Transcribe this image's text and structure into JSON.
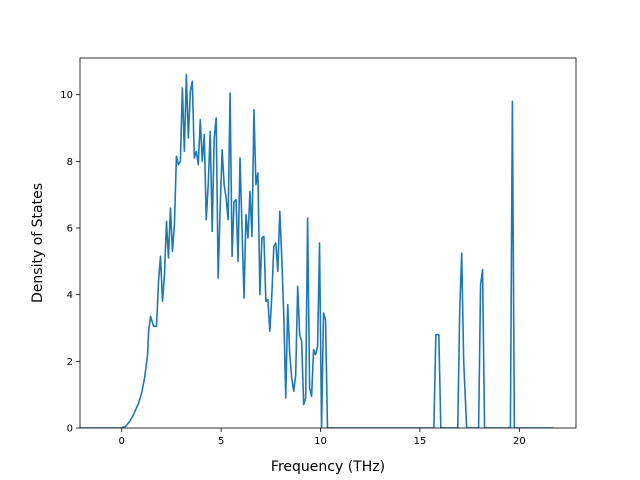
{
  "chart_data": {
    "type": "line",
    "title": "",
    "xlabel": "Frequency (THz)",
    "ylabel": "Density of States",
    "xlim": [
      -2.1,
      22.85
    ],
    "ylim": [
      0,
      11.1
    ],
    "xticks": [
      0,
      5,
      10,
      15,
      20
    ],
    "yticks": [
      0,
      2,
      4,
      6,
      8,
      10
    ],
    "grid": false,
    "legend": "none",
    "colors": {
      "line": "#1f77b4",
      "axes": "#000000",
      "background": "#ffffff"
    },
    "series": [
      {
        "x": [
          -2.1,
          0.0,
          0.2,
          0.4,
          0.55,
          0.7,
          0.85,
          1.0,
          1.15,
          1.3,
          1.35,
          1.45,
          1.6,
          1.75,
          1.85,
          1.95,
          2.05,
          2.15,
          2.25,
          2.35,
          2.45,
          2.55,
          2.65,
          2.75,
          2.85,
          2.95,
          3.05,
          3.15,
          3.25,
          3.35,
          3.45,
          3.55,
          3.65,
          3.75,
          3.85,
          3.95,
          4.05,
          4.15,
          4.25,
          4.35,
          4.45,
          4.55,
          4.65,
          4.75,
          4.85,
          4.95,
          5.05,
          5.15,
          5.25,
          5.35,
          5.45,
          5.55,
          5.65,
          5.75,
          5.85,
          5.95,
          6.05,
          6.15,
          6.25,
          6.35,
          6.45,
          6.55,
          6.65,
          6.75,
          6.85,
          6.95,
          7.05,
          7.15,
          7.25,
          7.35,
          7.45,
          7.55,
          7.65,
          7.75,
          7.85,
          7.95,
          8.05,
          8.15,
          8.25,
          8.35,
          8.45,
          8.55,
          8.65,
          8.75,
          8.85,
          8.95,
          9.05,
          9.15,
          9.25,
          9.35,
          9.45,
          9.55,
          9.65,
          9.75,
          9.85,
          9.95,
          10.05,
          10.15,
          10.25,
          10.35,
          10.45,
          10.55,
          10.65,
          10.75,
          10.85,
          10.95,
          11.05,
          11.15,
          11.25,
          11.35,
          11.45,
          11.55,
          11.65,
          11.75,
          11.85,
          11.95,
          12.05,
          15.55,
          15.7,
          15.8,
          15.95,
          16.05,
          16.15,
          16.9,
          17.0,
          17.1,
          17.2,
          17.35,
          17.45,
          17.95,
          18.05,
          18.15,
          18.25,
          18.35,
          19.45,
          19.55,
          19.65,
          19.75,
          21.7
        ],
        "y": [
          0,
          0,
          0.05,
          0.2,
          0.35,
          0.55,
          0.75,
          1.05,
          1.5,
          2.2,
          2.9,
          3.35,
          3.05,
          3.05,
          4.4,
          5.15,
          3.8,
          4.6,
          6.2,
          5.1,
          6.6,
          5.3,
          6.1,
          8.15,
          7.9,
          8.0,
          10.2,
          8.3,
          10.6,
          8.7,
          10.1,
          10.4,
          8.1,
          8.3,
          7.9,
          9.25,
          8.0,
          8.8,
          6.25,
          7.3,
          8.9,
          5.9,
          8.7,
          9.3,
          4.5,
          6.6,
          8.35,
          7.3,
          6.9,
          6.25,
          10.05,
          5.15,
          6.8,
          6.85,
          5.0,
          8.1,
          6.0,
          3.9,
          6.4,
          5.7,
          7.1,
          5.75,
          9.55,
          7.3,
          7.65,
          4.0,
          5.7,
          5.75,
          3.8,
          3.85,
          2.9,
          4.0,
          5.45,
          5.55,
          4.7,
          6.5,
          5.1,
          3.4,
          0.9,
          3.7,
          2.2,
          1.5,
          1.1,
          1.6,
          4.25,
          2.8,
          2.6,
          0.7,
          0.9,
          6.3,
          1.2,
          0.95,
          2.35,
          2.2,
          2.45,
          5.55,
          0,
          3.45,
          3.25,
          0,
          0,
          0,
          0,
          0,
          0,
          0,
          0,
          0,
          0,
          0,
          0,
          0,
          0,
          0,
          0,
          0,
          0,
          0,
          0,
          2.8,
          2.8,
          0,
          0,
          0,
          3.5,
          5.25,
          2.0,
          0,
          0,
          0,
          4.3,
          4.75,
          0,
          0,
          0,
          0,
          9.8,
          0,
          0
        ],
        "color": "#1f77b4"
      }
    ]
  }
}
